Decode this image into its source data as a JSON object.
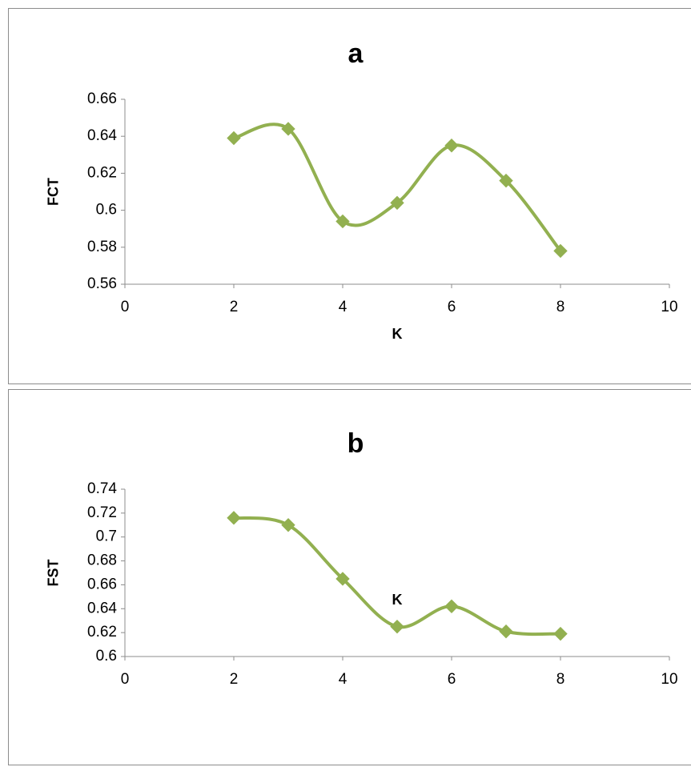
{
  "chart_data": [
    {
      "type": "line",
      "title": "a",
      "xlabel": "K",
      "ylabel": "FCT",
      "xlim": [
        0,
        10
      ],
      "ylim": [
        0.56,
        0.66
      ],
      "x_ticks": [
        "0",
        "2",
        "4",
        "6",
        "8",
        "10"
      ],
      "y_ticks": [
        "0.56",
        "0.58",
        "0.6",
        "0.62",
        "0.64",
        "0.66"
      ],
      "grid": false,
      "smooth": true,
      "marker": "diamond",
      "color": "#92b050",
      "series": [
        {
          "x": [
            2,
            3,
            4,
            5,
            6,
            7,
            8
          ],
          "values": [
            0.639,
            0.644,
            0.594,
            0.604,
            0.635,
            0.616,
            0.578
          ]
        }
      ]
    },
    {
      "type": "line",
      "title": "b",
      "xlabel": "K",
      "ylabel": "FST",
      "xlim": [
        0,
        10
      ],
      "ylim": [
        0.6,
        0.74
      ],
      "x_ticks": [
        "0",
        "2",
        "4",
        "6",
        "8",
        "10"
      ],
      "y_ticks": [
        "0.6",
        "0.62",
        "0.64",
        "0.66",
        "0.68",
        "0.7",
        "0.72",
        "0.74"
      ],
      "grid": false,
      "smooth": true,
      "marker": "diamond",
      "color": "#92b050",
      "series": [
        {
          "x": [
            2,
            3,
            4,
            5,
            6,
            7,
            8
          ],
          "values": [
            0.716,
            0.71,
            0.665,
            0.625,
            0.642,
            0.621,
            0.619
          ]
        }
      ]
    }
  ]
}
